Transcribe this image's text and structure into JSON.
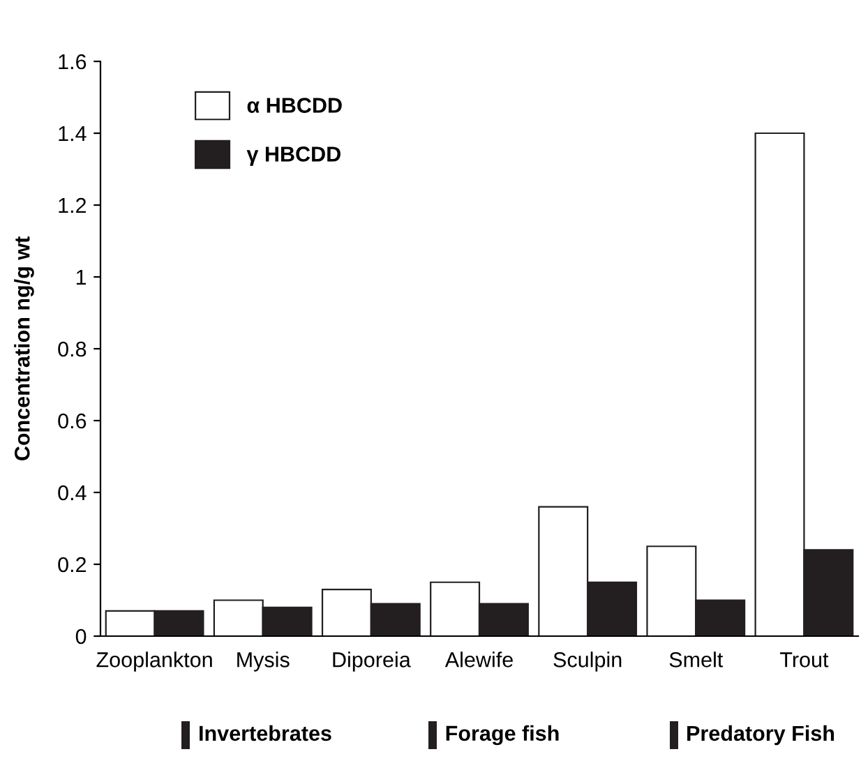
{
  "chart_data": {
    "type": "bar",
    "ylabel": "Concentration ng/g wt",
    "categories": [
      "Zooplankton",
      "Mysis",
      "Diporeia",
      "Alewife",
      "Sculpin",
      "Smelt",
      "Trout"
    ],
    "series": [
      {
        "name": "α HBCDD",
        "color": "#ffffff",
        "values": [
          0.07,
          0.1,
          0.13,
          0.15,
          0.36,
          0.25,
          1.4
        ]
      },
      {
        "name": "γ HBCDD",
        "color": "#231f20",
        "values": [
          0.07,
          0.08,
          0.09,
          0.09,
          0.15,
          0.1,
          0.24
        ]
      }
    ],
    "ylim": [
      0,
      1.6
    ],
    "yticks": [
      0,
      0.2,
      0.4,
      0.6,
      0.8,
      1,
      1.2,
      1.4,
      1.6
    ],
    "grid": false,
    "legend": "top left",
    "annotations": [
      "Invertebrates",
      "Forage fish",
      "Predatory Fish"
    ]
  }
}
